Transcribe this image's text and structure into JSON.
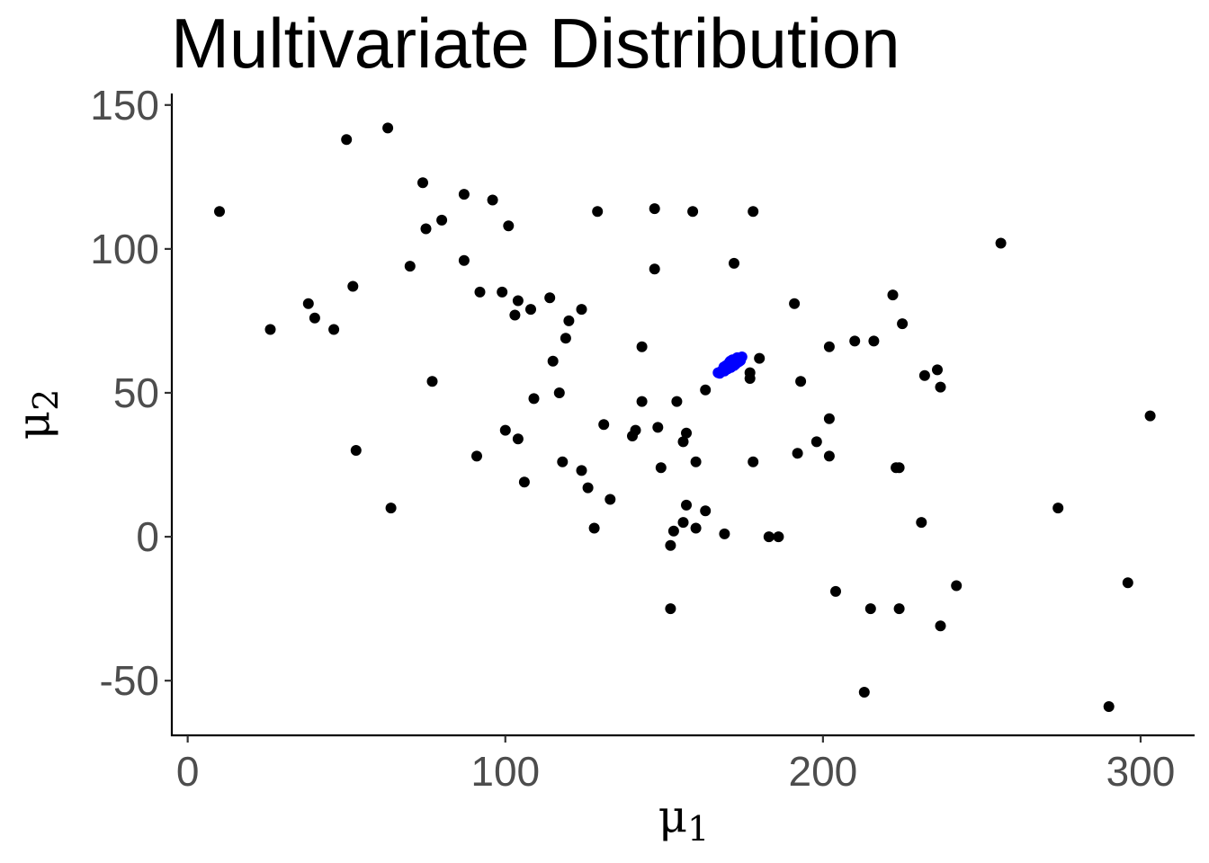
{
  "chart_data": {
    "type": "scatter",
    "title": "Multivariate Distribution",
    "xlabel": {
      "base": "μ",
      "sub": "1"
    },
    "ylabel": {
      "base": "μ",
      "sub": "2"
    },
    "xlim": [
      -5,
      317
    ],
    "ylim": [
      -69,
      154
    ],
    "xticks": [
      0,
      100,
      200,
      300
    ],
    "yticks": [
      -50,
      0,
      50,
      100,
      150
    ],
    "xtick_labels": [
      "0",
      "100",
      "200",
      "300"
    ],
    "ytick_labels": [
      "-50",
      "0",
      "50",
      "100",
      "150"
    ],
    "grid": false,
    "legend": "none",
    "series": [
      {
        "color": "#000000",
        "points": [
          [
            10,
            113
          ],
          [
            26,
            72
          ],
          [
            38,
            81
          ],
          [
            40,
            76
          ],
          [
            46,
            72
          ],
          [
            50,
            138
          ],
          [
            52,
            87
          ],
          [
            53,
            30
          ],
          [
            63,
            142
          ],
          [
            64,
            10
          ],
          [
            70,
            94
          ],
          [
            74,
            123
          ],
          [
            75,
            107
          ],
          [
            77,
            54
          ],
          [
            80,
            110
          ],
          [
            87,
            96
          ],
          [
            87,
            119
          ],
          [
            91,
            28
          ],
          [
            92,
            85
          ],
          [
            96,
            117
          ],
          [
            99,
            85
          ],
          [
            100,
            37
          ],
          [
            101,
            108
          ],
          [
            103,
            77
          ],
          [
            104,
            34
          ],
          [
            104,
            82
          ],
          [
            106,
            19
          ],
          [
            108,
            79
          ],
          [
            109,
            48
          ],
          [
            114,
            83
          ],
          [
            115,
            61
          ],
          [
            117,
            50
          ],
          [
            118,
            26
          ],
          [
            119,
            69
          ],
          [
            120,
            75
          ],
          [
            124,
            23
          ],
          [
            124,
            79
          ],
          [
            126,
            17
          ],
          [
            128,
            3
          ],
          [
            129,
            113
          ],
          [
            131,
            39
          ],
          [
            133,
            13
          ],
          [
            140,
            35
          ],
          [
            141,
            37
          ],
          [
            143,
            47
          ],
          [
            143,
            66
          ],
          [
            147,
            93
          ],
          [
            147,
            114
          ],
          [
            148,
            38
          ],
          [
            149,
            24
          ],
          [
            152,
            -25
          ],
          [
            152,
            -3
          ],
          [
            153,
            2
          ],
          [
            154,
            47
          ],
          [
            156,
            5
          ],
          [
            156,
            33
          ],
          [
            157,
            36
          ],
          [
            157,
            11
          ],
          [
            159,
            113
          ],
          [
            160,
            26
          ],
          [
            160,
            3
          ],
          [
            163,
            51
          ],
          [
            163,
            9
          ],
          [
            169,
            1
          ],
          [
            172,
            95
          ],
          [
            177,
            57
          ],
          [
            177,
            55
          ],
          [
            178,
            113
          ],
          [
            178,
            26
          ],
          [
            180,
            62
          ],
          [
            183,
            0
          ],
          [
            186,
            0
          ],
          [
            191,
            81
          ],
          [
            192,
            29
          ],
          [
            193,
            54
          ],
          [
            198,
            33
          ],
          [
            202,
            28
          ],
          [
            202,
            41
          ],
          [
            202,
            66
          ],
          [
            204,
            -19
          ],
          [
            210,
            68
          ],
          [
            213,
            -54
          ],
          [
            215,
            -25
          ],
          [
            216,
            68
          ],
          [
            222,
            84
          ],
          [
            223,
            24
          ],
          [
            224,
            -25
          ],
          [
            224,
            24
          ],
          [
            225,
            74
          ],
          [
            231,
            5
          ],
          [
            232,
            56
          ],
          [
            236,
            58
          ],
          [
            237,
            52
          ],
          [
            237,
            -31
          ],
          [
            242,
            -17
          ],
          [
            256,
            102
          ],
          [
            274,
            10
          ],
          [
            290,
            -59
          ],
          [
            296,
            -16
          ],
          [
            303,
            42
          ]
        ]
      },
      {
        "color": "#0000ff",
        "points": [
          [
            167,
            57
          ],
          [
            168,
            57.5
          ],
          [
            169,
            58
          ],
          [
            170,
            59
          ],
          [
            171,
            60
          ],
          [
            172,
            61
          ],
          [
            173,
            61.5
          ],
          [
            174,
            62
          ],
          [
            168.5,
            58
          ],
          [
            169.5,
            59.5
          ],
          [
            170.5,
            60.5
          ],
          [
            171.5,
            61.5
          ],
          [
            172.5,
            60
          ],
          [
            173.5,
            60.8
          ],
          [
            174,
            61.2
          ],
          [
            170,
            58.3
          ],
          [
            171,
            58.8
          ],
          [
            172,
            59.5
          ],
          [
            169,
            57.6
          ],
          [
            167.5,
            56.8
          ],
          [
            173,
            62.2
          ],
          [
            174.5,
            62.5
          ],
          [
            170.8,
            61
          ],
          [
            168.8,
            59
          ]
        ]
      }
    ]
  }
}
